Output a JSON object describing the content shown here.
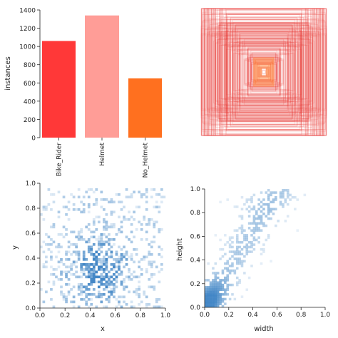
{
  "chart_data": [
    {
      "type": "bar",
      "categories": [
        "Bike_Rider",
        "Helmet",
        "No_Helmet"
      ],
      "values": [
        1060,
        1340,
        650
      ],
      "colors": [
        "#ff3838",
        "#ff9d97",
        "#ff701f"
      ],
      "ylabel": "instances",
      "ylim": [
        0,
        1400
      ],
      "yticks": [
        "0",
        "200",
        "400",
        "600",
        "800",
        "1000",
        "1200",
        "1400"
      ],
      "grid": false
    },
    {
      "type": "other",
      "description_label": "",
      "box_color": "#e8302c",
      "axes_visible": false
    },
    {
      "type": "heatmap",
      "xlabel": "x",
      "ylabel": "y",
      "xlim": [
        0,
        1
      ],
      "ylim": [
        0,
        1
      ],
      "xticks": [
        "0.0",
        "0.2",
        "0.4",
        "0.6",
        "0.8",
        "1.0"
      ],
      "yticks": [
        "0.0",
        "0.2",
        "0.4",
        "0.6",
        "0.8",
        "1.0"
      ],
      "color": "#3b82c4"
    },
    {
      "type": "heatmap",
      "xlabel": "width",
      "ylabel": "height",
      "xlim": [
        0,
        1
      ],
      "ylim": [
        0,
        1
      ],
      "xticks": [
        "0.0",
        "0.2",
        "0.4",
        "0.6",
        "0.8",
        "1.0"
      ],
      "yticks": [
        "0.0",
        "0.2",
        "0.4",
        "0.6",
        "0.8",
        "1.0"
      ],
      "color": "#3b82c4"
    }
  ]
}
